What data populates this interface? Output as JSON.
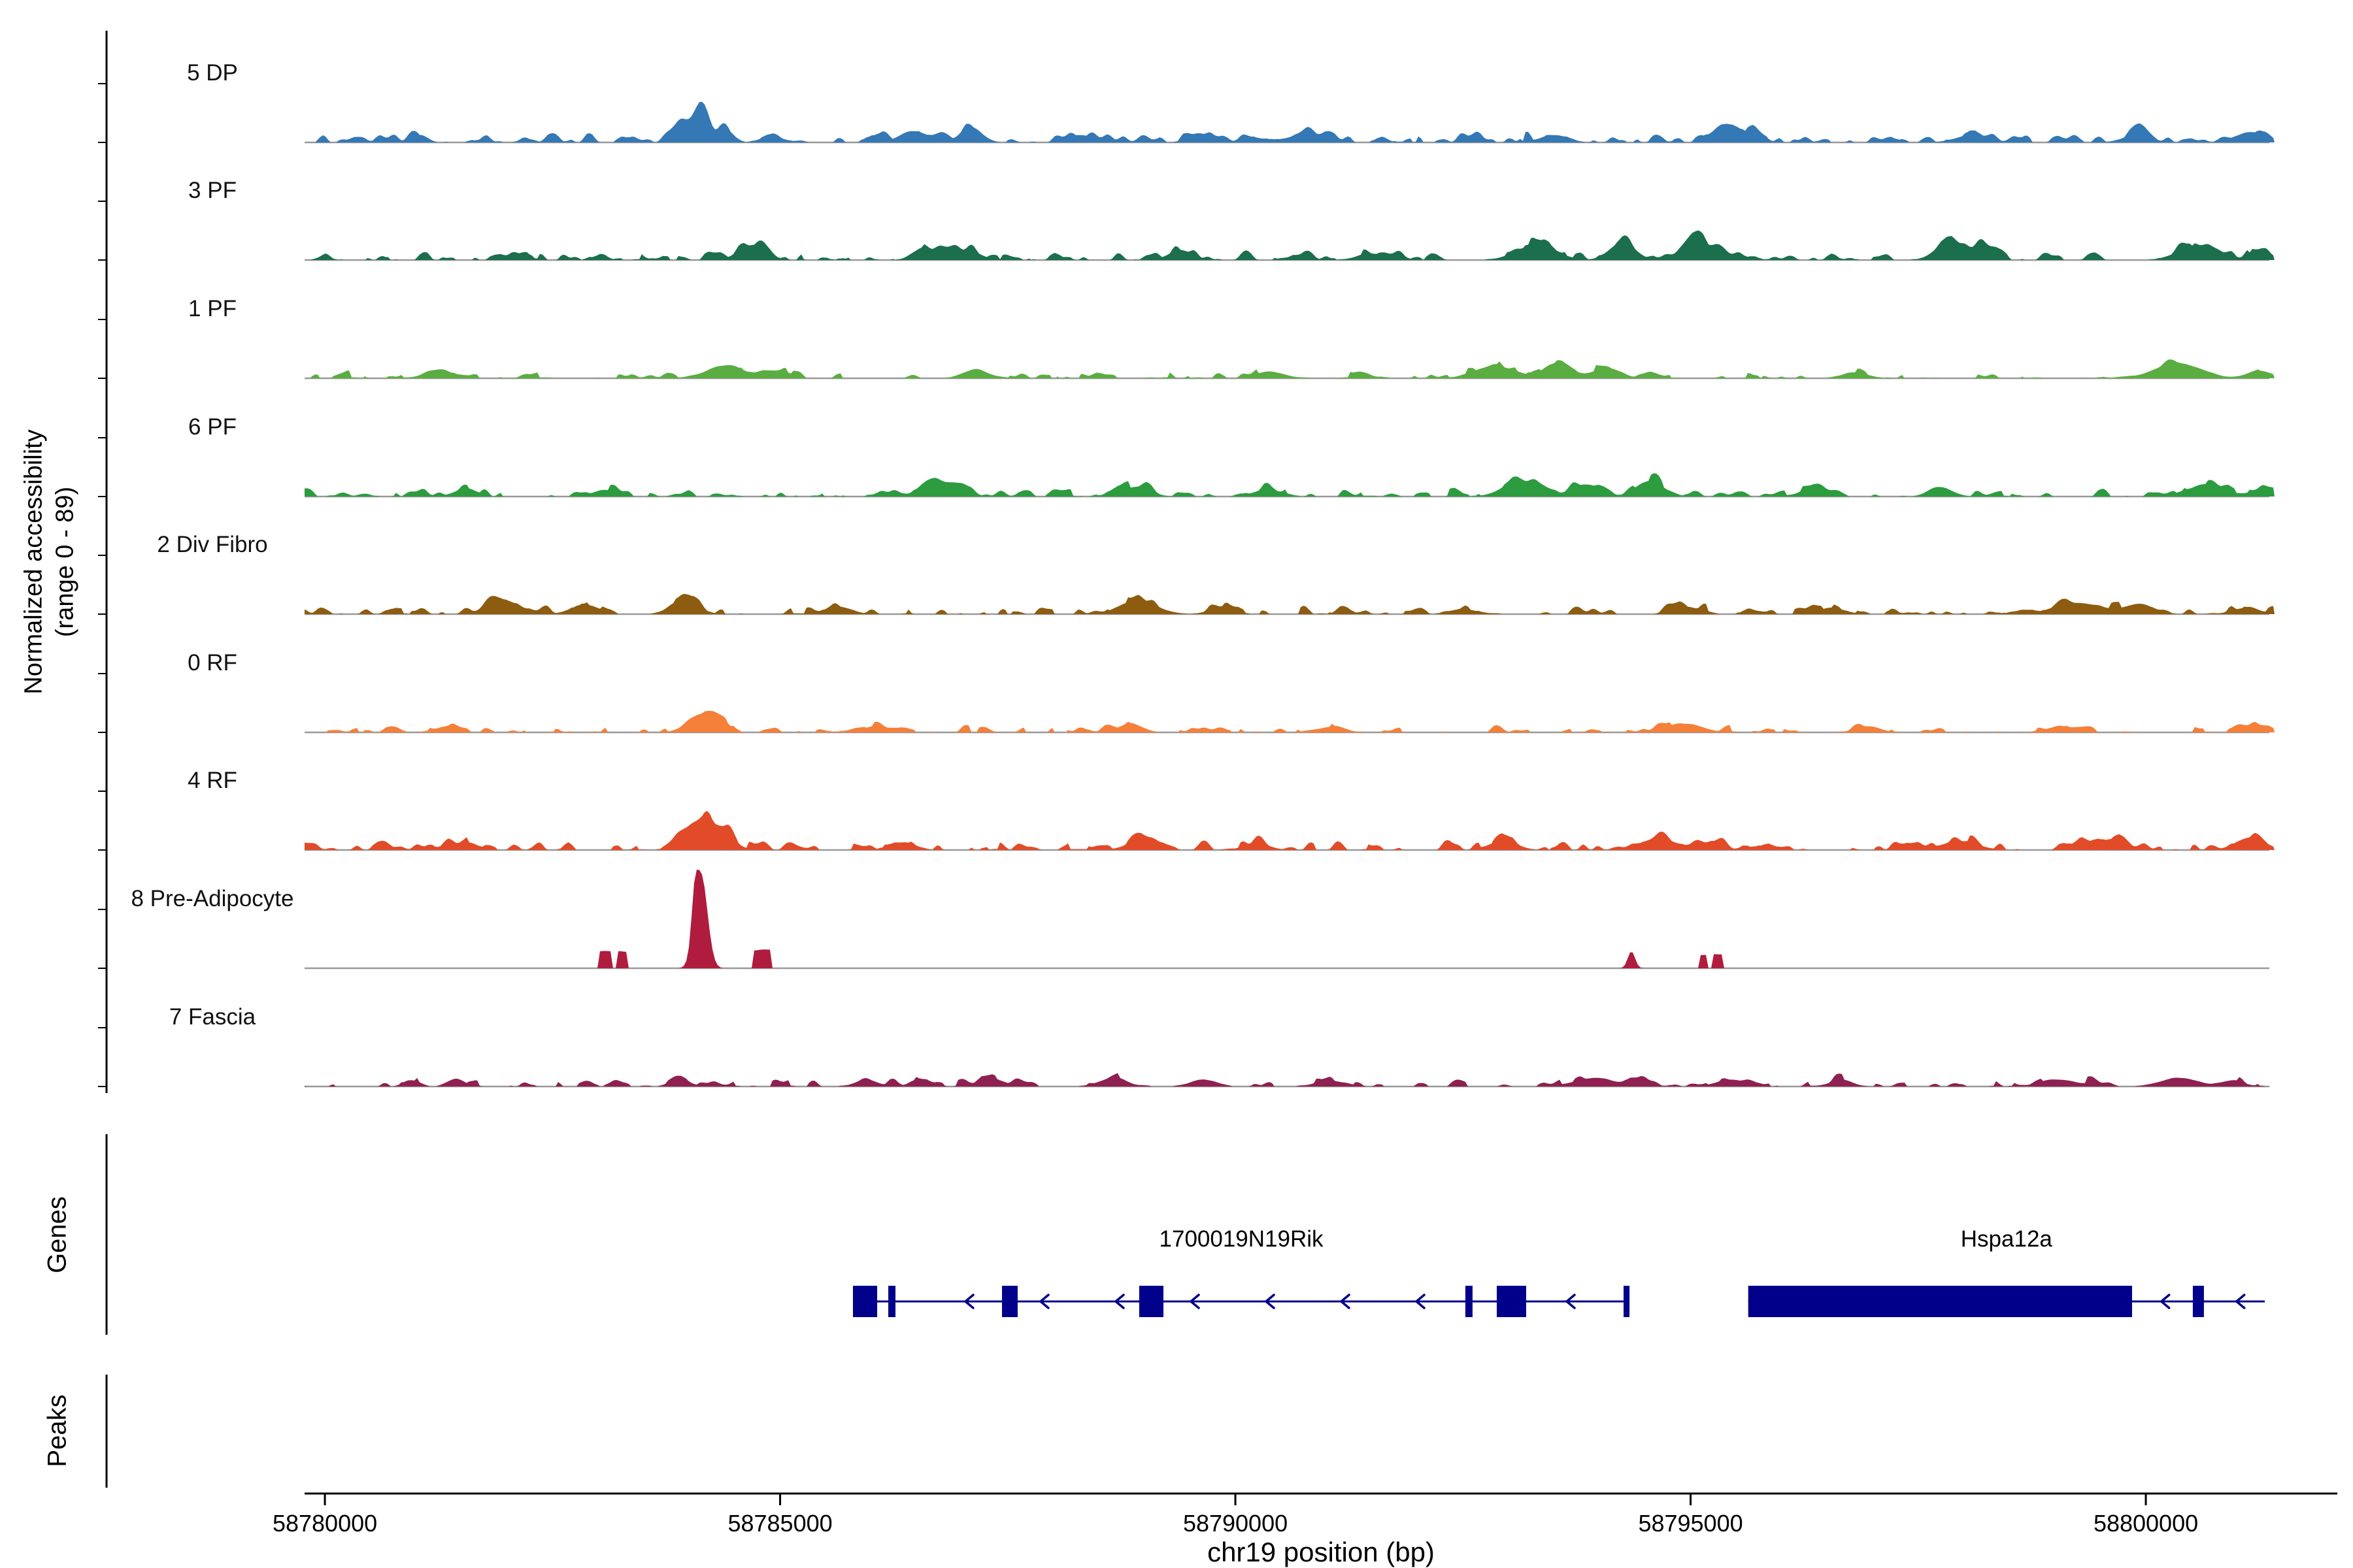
{
  "chart_data": {
    "type": "area",
    "subtype": "genome-coverage-tracks",
    "region": {
      "chrom": "chr19",
      "start": 58779777,
      "end": 58801414
    },
    "y_axis": {
      "line1": "Normalized accessibility",
      "line2": "(range 0 - 89)",
      "range": [
        0,
        89
      ]
    },
    "sections": {
      "genes_label": "Genes",
      "peaks_label": "Peaks"
    },
    "axis": {
      "title": "chr19 position (bp)",
      "ticks": [
        {
          "bp": 58780000,
          "label": "58780000"
        },
        {
          "bp": 58785000,
          "label": "58785000"
        },
        {
          "bp": 58790000,
          "label": "58790000"
        },
        {
          "bp": 58795000,
          "label": "58795000"
        },
        {
          "bp": 58800000,
          "label": "58800000"
        }
      ]
    },
    "tracks": [
      {
        "name": "5 DP",
        "color": "#3478b5",
        "seed": 11,
        "noise": 13,
        "gate": 0.3,
        "peaks": [
          [
            58781050,
            80,
            12,
            "g"
          ],
          [
            58783950,
            120,
            30,
            "g"
          ],
          [
            58784150,
            70,
            38,
            "g"
          ],
          [
            58784400,
            90,
            20,
            "g"
          ],
          [
            58786450,
            140,
            18,
            "g"
          ],
          [
            58787100,
            120,
            24,
            "g"
          ],
          [
            58788300,
            120,
            12,
            "g"
          ],
          [
            58789600,
            120,
            15,
            "g"
          ],
          [
            58790900,
            150,
            12,
            "g"
          ],
          [
            58793500,
            150,
            12,
            "g"
          ],
          [
            58795350,
            110,
            28,
            "g"
          ],
          [
            58795650,
            90,
            18,
            "g"
          ],
          [
            58798100,
            180,
            12,
            "g"
          ],
          [
            58799900,
            150,
            12,
            "g"
          ],
          [
            58801150,
            170,
            16,
            "g"
          ]
        ]
      },
      {
        "name": "3 PF",
        "color": "#1b6f4d",
        "seed": 22,
        "noise": 12,
        "gate": 0.42,
        "peaks": [
          [
            58782100,
            120,
            10,
            "g"
          ],
          [
            58784700,
            150,
            24,
            "g"
          ],
          [
            58786600,
            120,
            20,
            "g"
          ],
          [
            58787050,
            140,
            16,
            "g"
          ],
          [
            58789400,
            130,
            16,
            "g"
          ],
          [
            58791500,
            150,
            10,
            "g"
          ],
          [
            58793300,
            200,
            24,
            "g"
          ],
          [
            58794250,
            140,
            28,
            "g"
          ],
          [
            58795050,
            100,
            40,
            "g"
          ],
          [
            58795300,
            80,
            24,
            "g"
          ],
          [
            58797850,
            150,
            30,
            "g"
          ],
          [
            58798200,
            120,
            18,
            "g"
          ],
          [
            58800550,
            200,
            22,
            "g"
          ],
          [
            58801250,
            120,
            16,
            "g"
          ]
        ]
      },
      {
        "name": "1 PF",
        "color": "#5aad41",
        "seed": 33,
        "noise": 10,
        "gate": 0.47,
        "peaks": [
          [
            58781250,
            140,
            14,
            "g"
          ],
          [
            58784400,
            200,
            20,
            "g"
          ],
          [
            58785000,
            120,
            10,
            "g"
          ],
          [
            58787150,
            140,
            12,
            "g"
          ],
          [
            58790400,
            150,
            10,
            "g"
          ],
          [
            58792850,
            200,
            20,
            "g"
          ],
          [
            58793550,
            150,
            24,
            "g"
          ],
          [
            58794100,
            140,
            16,
            "g"
          ],
          [
            58796800,
            150,
            8,
            "g"
          ],
          [
            58800350,
            250,
            24,
            "g"
          ],
          [
            58801250,
            140,
            12,
            "g"
          ]
        ]
      },
      {
        "name": "6 PF",
        "color": "#2c9c3f",
        "seed": 44,
        "noise": 11,
        "gate": 0.44,
        "peaks": [
          [
            58781550,
            130,
            12,
            "g"
          ],
          [
            58783050,
            110,
            10,
            "g"
          ],
          [
            58786700,
            150,
            28,
            "g"
          ],
          [
            58787000,
            100,
            18,
            "g"
          ],
          [
            58788950,
            130,
            16,
            "g"
          ],
          [
            58790350,
            140,
            12,
            "g"
          ],
          [
            58793150,
            200,
            24,
            "g"
          ],
          [
            58793850,
            150,
            20,
            "g"
          ],
          [
            58794550,
            150,
            22,
            "g"
          ],
          [
            58796350,
            140,
            12,
            "g"
          ],
          [
            58797750,
            130,
            14,
            "g"
          ],
          [
            58800650,
            200,
            18,
            "g"
          ],
          [
            58801350,
            140,
            16,
            "g"
          ]
        ]
      },
      {
        "name": "2 Div Fibro",
        "color": "#8d5c10",
        "seed": 55,
        "noise": 11,
        "gate": 0.44,
        "peaks": [
          [
            58781950,
            200,
            16,
            "g"
          ],
          [
            58782850,
            150,
            14,
            "g"
          ],
          [
            58783950,
            150,
            22,
            "g"
          ],
          [
            58785650,
            140,
            12,
            "g"
          ],
          [
            58788950,
            200,
            20,
            "g"
          ],
          [
            58789850,
            130,
            12,
            "g"
          ],
          [
            58792500,
            150,
            8,
            "g"
          ],
          [
            58794950,
            150,
            12,
            "g"
          ],
          [
            58796550,
            130,
            9,
            "g"
          ],
          [
            58799250,
            250,
            18,
            "g"
          ],
          [
            58799950,
            160,
            14,
            "g"
          ],
          [
            58801100,
            150,
            10,
            "g"
          ]
        ]
      },
      {
        "name": "0 RF",
        "color": "#f4803a",
        "seed": 66,
        "noise": 9,
        "gate": 0.47,
        "peaks": [
          [
            58781350,
            120,
            10,
            "g"
          ],
          [
            58784120,
            130,
            28,
            "g"
          ],
          [
            58784350,
            90,
            16,
            "g"
          ],
          [
            58786050,
            140,
            9,
            "g"
          ],
          [
            58788850,
            130,
            14,
            "g"
          ],
          [
            58791050,
            140,
            9,
            "g"
          ],
          [
            58794950,
            180,
            14,
            "g"
          ],
          [
            58796950,
            130,
            10,
            "g"
          ],
          [
            58799050,
            150,
            9,
            "g"
          ],
          [
            58801250,
            150,
            12,
            "g"
          ]
        ]
      },
      {
        "name": "4 RF",
        "color": "#e24b28",
        "seed": 77,
        "noise": 12,
        "gate": 0.4,
        "peaks": [
          [
            58781550,
            150,
            10,
            "g"
          ],
          [
            58783900,
            90,
            24,
            "g"
          ],
          [
            58784150,
            130,
            48,
            "g"
          ],
          [
            58784400,
            100,
            28,
            "g"
          ],
          [
            58786350,
            140,
            12,
            "g"
          ],
          [
            58788950,
            150,
            14,
            "g"
          ],
          [
            58790250,
            130,
            10,
            "g"
          ],
          [
            58792950,
            150,
            14,
            "g"
          ],
          [
            58794650,
            200,
            18,
            "g"
          ],
          [
            58795250,
            120,
            14,
            "g"
          ],
          [
            58797950,
            200,
            14,
            "g"
          ],
          [
            58799550,
            200,
            16,
            "g"
          ],
          [
            58801150,
            160,
            20,
            "g"
          ]
        ]
      },
      {
        "name": "8 Pre-Adipocyte",
        "color": "#b01c3e",
        "seed": 88,
        "noise": 0,
        "gate": 1,
        "peaks": [
          [
            58783090,
            70,
            26,
            "b"
          ],
          [
            58783260,
            60,
            26,
            "b"
          ],
          [
            58784130,
            70,
            140,
            "g"
          ],
          [
            58784060,
            32,
            55,
            "g"
          ],
          [
            58784800,
            90,
            28,
            "b"
          ],
          [
            58794350,
            40,
            25,
            "g"
          ],
          [
            58795140,
            45,
            20,
            "b"
          ],
          [
            58795300,
            55,
            21,
            "b"
          ]
        ]
      },
      {
        "name": "7 Fascia",
        "color": "#8e2151",
        "seed": 99,
        "noise": 9,
        "gate": 0.5,
        "peaks": [
          [
            58780950,
            90,
            9,
            "g"
          ],
          [
            58781450,
            90,
            11,
            "g"
          ],
          [
            58783900,
            110,
            11,
            "g"
          ],
          [
            58785950,
            120,
            11,
            "g"
          ],
          [
            58786550,
            110,
            11,
            "g"
          ],
          [
            58787350,
            130,
            11,
            "g"
          ],
          [
            58788650,
            150,
            13,
            "g"
          ],
          [
            58789650,
            130,
            11,
            "g"
          ],
          [
            58791050,
            150,
            9,
            "g"
          ],
          [
            58793950,
            200,
            14,
            "g"
          ],
          [
            58794450,
            120,
            11,
            "g"
          ],
          [
            58795450,
            150,
            11,
            "g"
          ],
          [
            58796650,
            130,
            9,
            "g"
          ],
          [
            58799050,
            200,
            11,
            "g"
          ],
          [
            58800350,
            200,
            13,
            "g"
          ],
          [
            58800950,
            130,
            9,
            "g"
          ]
        ]
      }
    ],
    "genes": [
      {
        "name": "1700019N19Rik",
        "strand": "-",
        "start": 58785800,
        "end": 58794329,
        "exons": [
          [
            58785800,
            58786066
          ],
          [
            58786188,
            58786267
          ],
          [
            58787437,
            58787609
          ],
          [
            58788944,
            58789210
          ],
          [
            58792526,
            58792605
          ],
          [
            58792871,
            58793194
          ],
          [
            58794264,
            58794329
          ]
        ]
      },
      {
        "name": "Hspa12a",
        "strand": "-",
        "start": 58795633,
        "end": 58801306,
        "exons": [
          [
            58795633,
            58799849
          ],
          [
            58800516,
            58800638
          ]
        ]
      }
    ],
    "gene_color": "#00008b",
    "peaks_track": {
      "items": []
    }
  }
}
